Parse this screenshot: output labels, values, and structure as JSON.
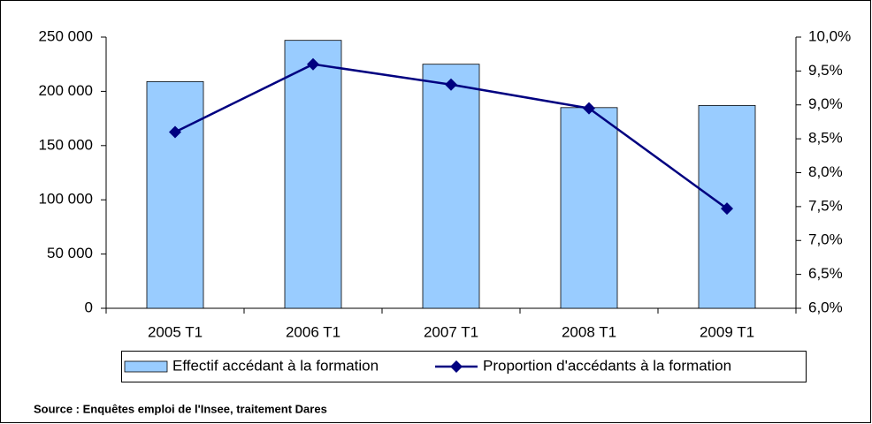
{
  "chart_data": {
    "type": "bar_line",
    "categories": [
      "2005 T1",
      "2006 T1",
      "2007 T1",
      "2008 T1",
      "2009 T1"
    ],
    "series": [
      {
        "name": "Effectif accédant à la formation",
        "type": "bar",
        "color": "#99ccff",
        "values": [
          209000,
          247000,
          225000,
          185000,
          187000
        ]
      },
      {
        "name": "Proportion d'accédants à la formation",
        "type": "line",
        "axis": "y2",
        "color": "#000080",
        "values": [
          8.6,
          9.6,
          9.3,
          8.95,
          7.47
        ]
      }
    ],
    "ylim": [
      0,
      250000
    ],
    "yticks": [
      0,
      {
        "value": 50000,
        "label": "50 000"
      },
      {
        "value": 100000,
        "label": "100 000"
      },
      {
        "value": 150000,
        "label": "150 000"
      },
      {
        "value": 200000,
        "label": "200 000"
      },
      {
        "value": 250000,
        "label": "250 000"
      }
    ],
    "y2lim": [
      6,
      10
    ],
    "y2ticks": [
      {
        "value": 6,
        "label": "6,0%"
      },
      {
        "value": 6.5,
        "label": "6,5%"
      },
      {
        "value": 7,
        "label": "7,0%"
      },
      {
        "value": 7.5,
        "label": "7,5%"
      },
      {
        "value": 8,
        "label": "8,0%"
      },
      {
        "value": 8.5,
        "label": "8,5%"
      },
      {
        "value": 9,
        "label": "9,0%"
      },
      {
        "value": 9.5,
        "label": "9,5%"
      },
      {
        "value": 10,
        "label": "10,0%"
      }
    ],
    "legend": "bottom",
    "source": "Source : Enquêtes emploi de l'Insee, traitement Dares"
  }
}
